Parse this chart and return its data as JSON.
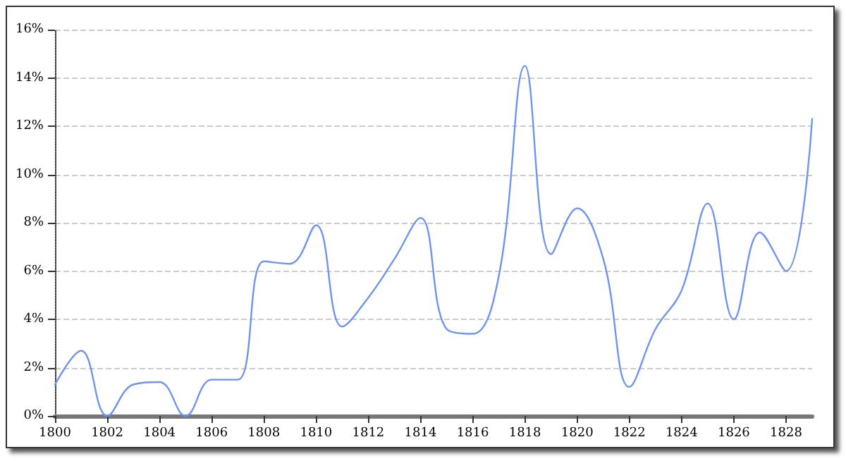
{
  "chart_data": {
    "type": "line",
    "x": [
      1800,
      1801,
      1802,
      1803,
      1804,
      1805,
      1806,
      1807,
      1808,
      1809,
      1810,
      1811,
      1812,
      1813,
      1814,
      1815,
      1816,
      1817,
      1818,
      1819,
      1820,
      1821,
      1822,
      1823,
      1824,
      1825,
      1826,
      1827,
      1828,
      1829
    ],
    "series": [
      {
        "color": "#6f94f0",
        "values": [
          1.3,
          2.7,
          0,
          1.3,
          1.4,
          0,
          1.5,
          1.5,
          6.4,
          6.3,
          7.9,
          3.7,
          4.9,
          6.5,
          8.2,
          3.6,
          3.4,
          5.8,
          14.5,
          6.7,
          8.6,
          6.5,
          1.2,
          3.6,
          5.2,
          8.8,
          4.0,
          7.6,
          6.0,
          12.3
        ]
      }
    ],
    "xlim": [
      1800,
      1829
    ],
    "xticks": [
      1800,
      1802,
      1804,
      1806,
      1808,
      1810,
      1812,
      1814,
      1816,
      1818,
      1820,
      1822,
      1824,
      1826,
      1828
    ],
    "ylim": [
      0,
      16
    ],
    "yticks": [
      {
        "value": 0,
        "label": "0%"
      },
      {
        "value": 2,
        "label": "2%"
      },
      {
        "value": 4,
        "label": "4%"
      },
      {
        "value": 6,
        "label": "6%"
      },
      {
        "value": 8,
        "label": "8%"
      },
      {
        "value": 10,
        "label": "10%"
      },
      {
        "value": 12,
        "label": "12%"
      },
      {
        "value": 14,
        "label": "14%"
      },
      {
        "value": 16,
        "label": "16%"
      }
    ],
    "grid": "y",
    "marker": "none",
    "line_style": "solid"
  }
}
